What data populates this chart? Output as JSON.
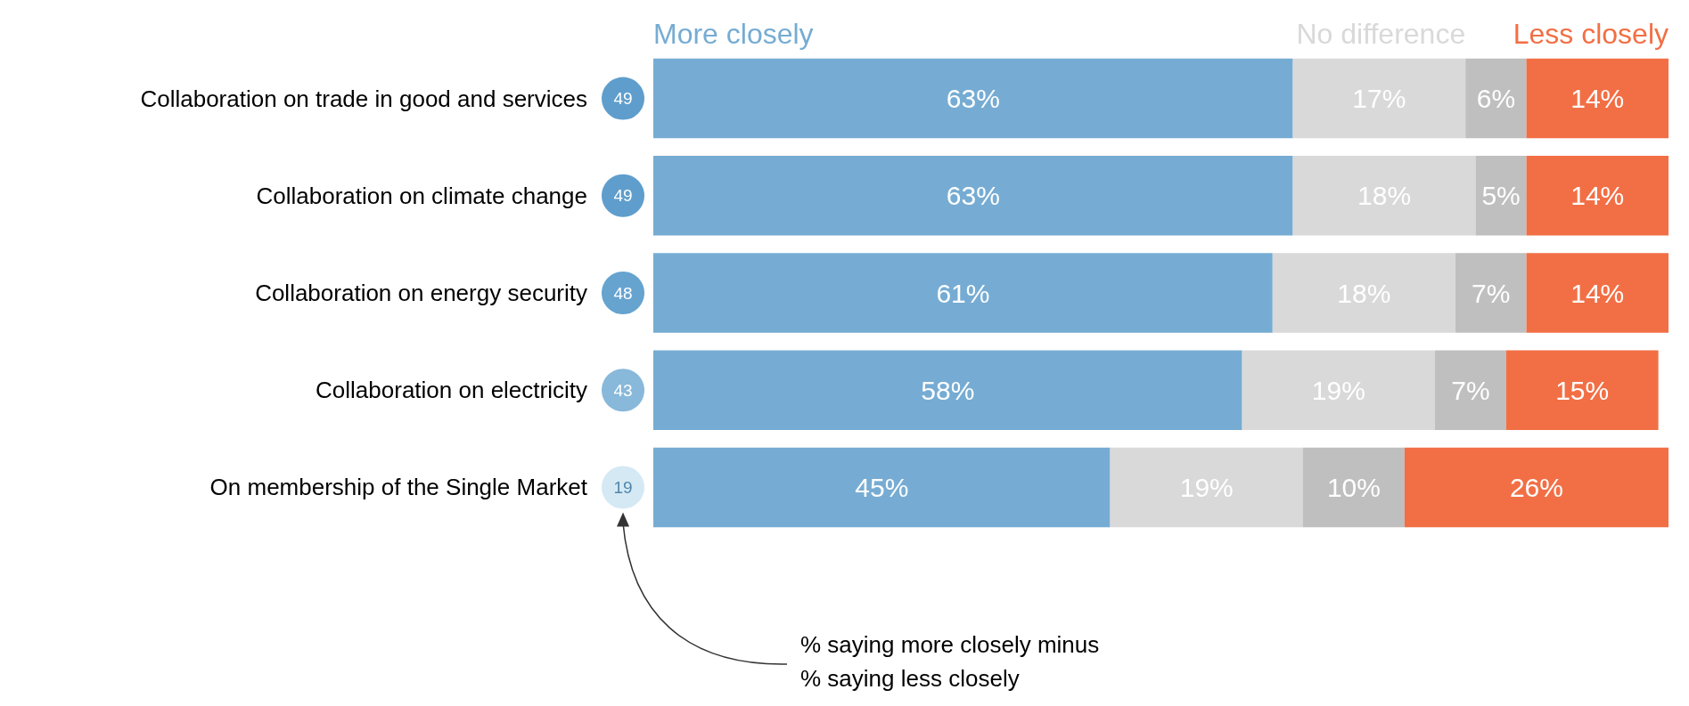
{
  "chart_data": {
    "type": "bar",
    "orientation": "horizontal",
    "stacked": true,
    "legend": false,
    "categories": [
      "Collaboration on trade in good and services",
      "Collaboration on climate change",
      "Collaboration on energy security",
      "Collaboration on electricity",
      "On membership of the Single Market"
    ],
    "series": [
      {
        "name": "More closely",
        "color": "#76acd3",
        "values": [
          63,
          63,
          61,
          58,
          45
        ],
        "value_labels": [
          "63%",
          "63%",
          "61%",
          "58%",
          "45%"
        ]
      },
      {
        "name": "No difference",
        "color": "#d9d9d9",
        "values": [
          17,
          18,
          18,
          19,
          19
        ],
        "value_labels": [
          "17%",
          "18%",
          "18%",
          "19%",
          "19%"
        ]
      },
      {
        "color": "#bfbfbf",
        "values": [
          6,
          5,
          7,
          7,
          10
        ],
        "value_labels": [
          "6%",
          "5%",
          "7%",
          "7%",
          "10%"
        ]
      },
      {
        "name": "Less closely",
        "color": "#f26f45",
        "values": [
          14,
          14,
          14,
          15,
          26
        ],
        "value_labels": [
          "14%",
          "14%",
          "14%",
          "15%",
          "26%"
        ]
      }
    ],
    "annotations": [
      "49",
      "49",
      "48",
      "43",
      "19",
      "% saying more closely minus\n% saying less closely"
    ]
  }
}
